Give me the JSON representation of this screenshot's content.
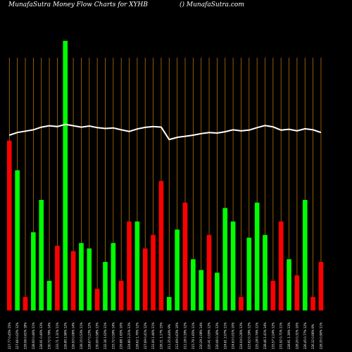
{
  "header": {
    "title_left": "MunafaSutra  Money Flow  Charts for XYHB",
    "title_right": "() MunafaSutra.com"
  },
  "colors": {
    "background": "#000000",
    "up": "#00ff00",
    "down": "#ff0000",
    "grid": "#b8720a",
    "line": "#ffffff"
  },
  "chart_data": {
    "type": "bar",
    "title": "MunafaSutra  Money Flow  Charts for XYHB",
    "ylim": [
      0,
      100
    ],
    "grid": "vertical",
    "categories": [
      "227.77 0.45% 15%",
      "227.66 0.02% 12%",
      "229.06 0.61% 18%",
      "228.00 0.46% 11%",
      "228.91 0.40% 13%",
      "230.72 0.79% 14%",
      "233.71 1.31% 11%",
      "226.80 2.96% 12%",
      "226.93 0.06% 14%",
      "228.15 0.53% 11%",
      "228.67 0.23% 12%",
      "230.00 0.58% 13%",
      "232.36 1.02% 11%",
      "233.72 0.59% 14%",
      "229.88 1.65% 10%",
      "224.80 2.21% 13%",
      "228.62 1.70% 12%",
      "227.69 0.41% 12%",
      "231.00 1.46% 11%",
      "228.31 1.17% 15%",
      "211.35 8.44% 9%",
      "212.69 0.63% 10%",
      "212.28 0.19% 12%",
      "215.79 1.65% 11%",
      "220.29 2.08% 14%",
      "220.41 0.05% 12%",
      "220.06 0.16% 13%",
      "224.61 2.07% 11%",
      "224.63 0.01% 10%",
      "224.04 0.26% 13%",
      "223.62 0.19% 12%",
      "225.28 0.74% 11%",
      "228.46 1.41% 14%",
      "233.57 2.24% 12%",
      "231.92 0.71% 11%",
      "228.91 1.30% 13%",
      "228.20 0.31% 10%",
      "226.45 0.77% 12%",
      "226.32 0.06% 9%",
      "228.35 0.90% 11%"
    ],
    "series": [
      {
        "values": [
          63,
          52,
          5,
          29,
          41,
          11,
          24,
          100,
          22,
          25,
          23,
          8,
          18,
          25,
          11,
          33,
          33,
          23,
          28,
          48,
          5,
          30,
          40,
          19,
          15,
          28,
          14,
          38,
          33,
          5,
          27,
          40,
          28,
          11,
          33,
          19,
          13,
          41,
          5,
          18
        ],
        "colors": [
          "red",
          "green",
          "red",
          "green",
          "green",
          "green",
          "red",
          "green",
          "red",
          "green",
          "green",
          "red",
          "green",
          "green",
          "red",
          "red",
          "green",
          "red",
          "red",
          "red",
          "green",
          "green",
          "red",
          "green",
          "green",
          "red",
          "green",
          "green",
          "green",
          "red",
          "green",
          "green",
          "green",
          "red",
          "red",
          "green",
          "red",
          "green",
          "red",
          "red"
        ]
      },
      {
        "type": "line",
        "values": [
          65,
          66,
          66.5,
          67,
          68,
          68.5,
          68.2,
          69,
          68.5,
          68,
          68.4,
          67.8,
          67.5,
          67.7,
          67,
          66.4,
          67.3,
          67.9,
          68.2,
          68,
          63.4,
          64.2,
          64.6,
          65,
          65.6,
          66,
          65.8,
          66.3,
          67,
          66.6,
          66.9,
          67.8,
          68.6,
          68.1,
          66.9,
          67.2,
          66.6,
          67.4,
          67,
          66
        ]
      }
    ]
  }
}
